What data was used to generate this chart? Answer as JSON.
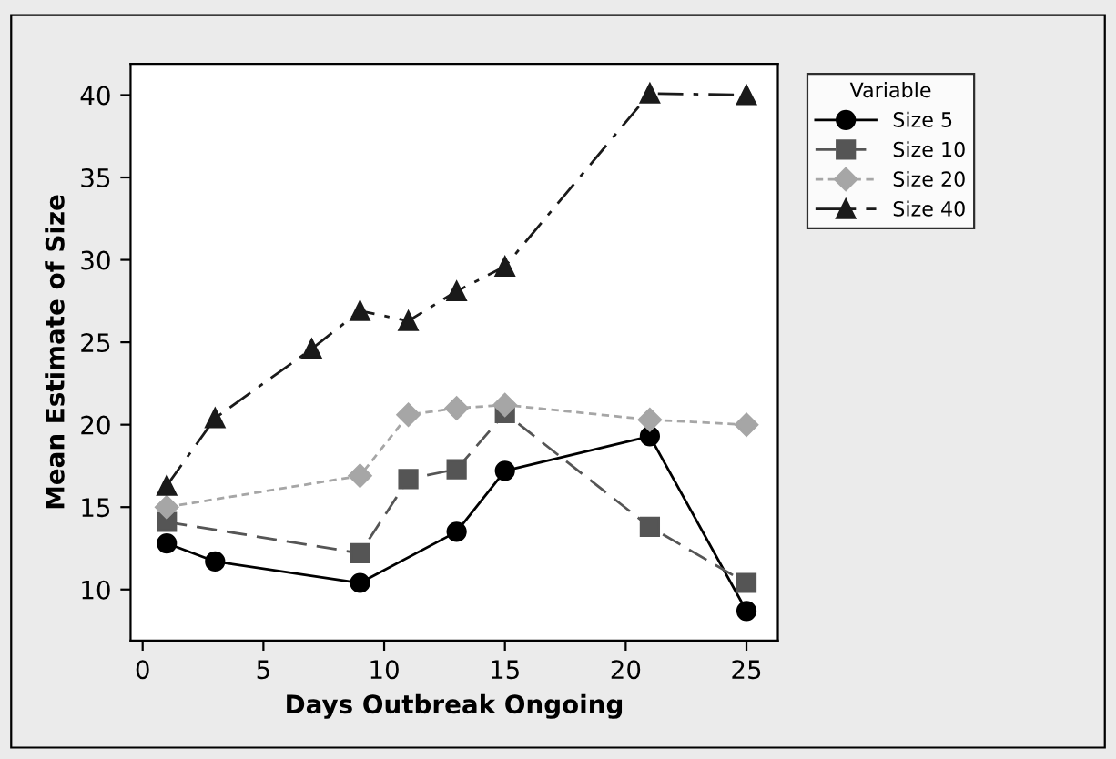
{
  "chart_data": {
    "type": "line",
    "xlabel": "Days Outbreak Ongoing",
    "ylabel": "Mean Estimate of Size",
    "legend_title": "Variable",
    "xlim": [
      -0.5,
      26.3
    ],
    "ylim": [
      6.9,
      41.9
    ],
    "xticks": [
      0,
      5,
      10,
      15,
      20,
      25
    ],
    "yticks": [
      10,
      15,
      20,
      25,
      30,
      35,
      40
    ],
    "grid": false,
    "legend": "right",
    "series": [
      {
        "name": "Size 5",
        "color": "#000000",
        "marker": "circle",
        "line_style": "solid",
        "x": [
          1,
          3,
          9,
          13,
          15,
          21,
          25
        ],
        "values": [
          12.8,
          11.7,
          10.4,
          13.5,
          17.2,
          19.3,
          8.7
        ]
      },
      {
        "name": "Size 10",
        "color": "#555555",
        "marker": "square",
        "line_style": "dashed",
        "x": [
          1,
          9,
          11,
          13,
          15,
          21,
          25
        ],
        "values": [
          14.1,
          12.2,
          16.7,
          17.3,
          20.7,
          13.8,
          10.4
        ]
      },
      {
        "name": "Size 20",
        "color": "#a6a6a6",
        "marker": "diamond",
        "line_style": "dotted",
        "x": [
          1,
          9,
          11,
          13,
          15,
          21,
          25
        ],
        "values": [
          15.0,
          16.9,
          20.6,
          21.0,
          21.2,
          20.3,
          20.0
        ]
      },
      {
        "name": "Size 40",
        "color": "#1a1a1a",
        "marker": "triangle",
        "line_style": "dashdot",
        "x": [
          1,
          3,
          7,
          9,
          11,
          13,
          15,
          21,
          25
        ],
        "values": [
          16.3,
          20.4,
          24.6,
          26.9,
          26.3,
          28.1,
          29.6,
          40.1,
          40.0
        ]
      }
    ]
  }
}
